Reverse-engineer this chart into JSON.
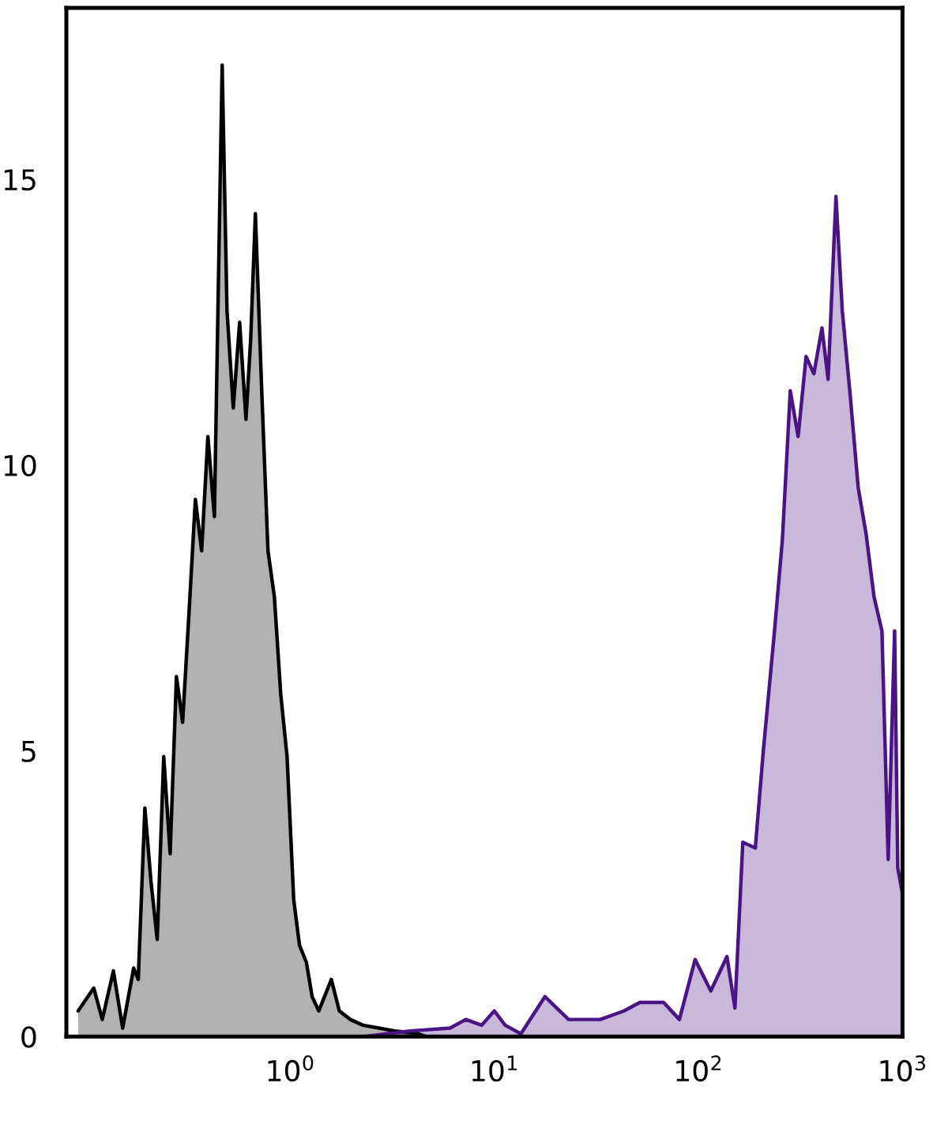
{
  "chart_data": {
    "type": "area",
    "log": "x",
    "grid": false,
    "xlim": [
      0.08,
      1000
    ],
    "ylim": [
      0,
      18
    ],
    "xticks": [
      {
        "value": 1,
        "label": "10$^{0}$"
      },
      {
        "value": 10,
        "label": "10$^{1}$"
      },
      {
        "value": 100,
        "label": "10$^{2}$"
      },
      {
        "value": 1000,
        "label": "10$^{3}$"
      }
    ],
    "yticks": [
      0,
      5,
      10,
      15
    ],
    "series": [
      {
        "color": "#000000",
        "x": [
          0.0914,
          0.109,
          0.12,
          0.136,
          0.151,
          0.171,
          0.18,
          0.194,
          0.208,
          0.223,
          0.24,
          0.258,
          0.277,
          0.297,
          0.319,
          0.343,
          0.368,
          0.395,
          0.425,
          0.464,
          0.49,
          0.526,
          0.565,
          0.607,
          0.64,
          0.675,
          0.725,
          0.778,
          0.836,
          0.898,
          0.965,
          1.04,
          1.11,
          1.2,
          1.28,
          1.38,
          1.59,
          1.74,
          1.97,
          2.27,
          2.72,
          3.25,
          4.25,
          4.64
        ],
        "values": [
          0.45,
          0.85,
          0.3,
          1.15,
          0.15,
          1.2,
          1.0,
          4.0,
          2.7,
          1.7,
          4.9,
          3.2,
          6.3,
          5.5,
          7.4,
          9.4,
          8.5,
          10.5,
          9.1,
          17.0,
          12.7,
          11.0,
          12.5,
          10.8,
          12.2,
          14.4,
          11.3,
          8.5,
          7.7,
          6.0,
          4.9,
          2.4,
          1.6,
          1.3,
          0.7,
          0.45,
          1.0,
          0.45,
          0.3,
          0.2,
          0.15,
          0.1,
          0.05,
          0
        ]
      },
      {
        "color": "#4b1485",
        "x": [
          2.27,
          3.88,
          6.07,
          7.25,
          8.67,
          10.0,
          11.3,
          13.5,
          17.7,
          23.1,
          33.0,
          43.2,
          51.7,
          67.5,
          80.7,
          96.4,
          115,
          138,
          151,
          165,
          190,
          208,
          236,
          258,
          282,
          308,
          337,
          368,
          403,
          432,
          472,
          507,
          555,
          607,
          663,
          725,
          793,
          851,
          915,
          948,
          1000
        ],
        "values": [
          0,
          0.1,
          0.15,
          0.3,
          0.2,
          0.45,
          0.2,
          0.05,
          0.7,
          0.3,
          0.3,
          0.45,
          0.6,
          0.6,
          0.3,
          1.35,
          0.8,
          1.4,
          0.5,
          3.4,
          3.3,
          5.0,
          7.1,
          8.7,
          11.3,
          10.5,
          11.9,
          11.6,
          12.4,
          11.5,
          14.7,
          12.7,
          11.2,
          9.6,
          8.8,
          7.7,
          7.1,
          3.1,
          7.1,
          2.95,
          2.5
        ]
      }
    ]
  }
}
